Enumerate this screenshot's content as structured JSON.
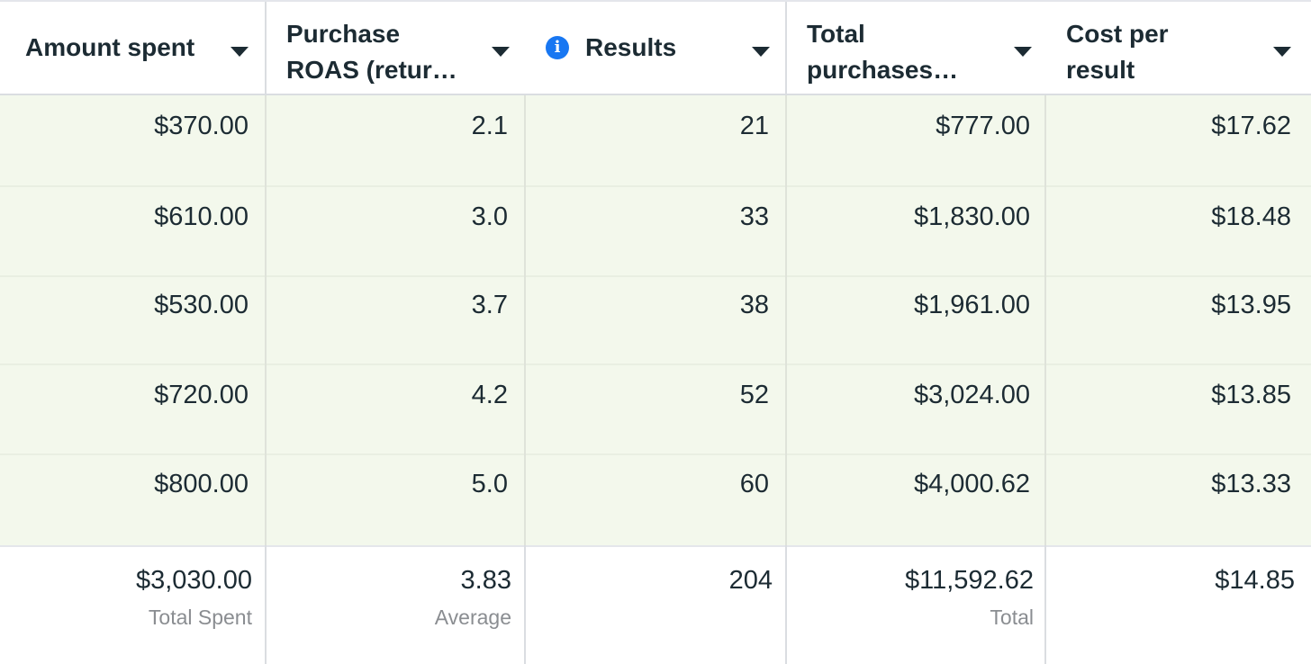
{
  "columns": [
    {
      "label": "Amount spent"
    },
    {
      "label": "Purchase\nROAS (retur…"
    },
    {
      "label": "Results"
    },
    {
      "label": "Total\npurchases…"
    },
    {
      "label": "Cost per\nresult"
    }
  ],
  "rows": [
    {
      "amount_spent": "$370.00",
      "roas": "2.1",
      "results": "21",
      "total_purchases": "$777.00",
      "cost_per_result": "$17.62"
    },
    {
      "amount_spent": "$610.00",
      "roas": "3.0",
      "results": "33",
      "total_purchases": "$1,830.00",
      "cost_per_result": "$18.48"
    },
    {
      "amount_spent": "$530.00",
      "roas": "3.7",
      "results": "38",
      "total_purchases": "$1,961.00",
      "cost_per_result": "$13.95"
    },
    {
      "amount_spent": "$720.00",
      "roas": "4.2",
      "results": "52",
      "total_purchases": "$3,024.00",
      "cost_per_result": "$13.85"
    },
    {
      "amount_spent": "$800.00",
      "roas": "5.0",
      "results": "60",
      "total_purchases": "$4,000.62",
      "cost_per_result": "$13.33"
    }
  ],
  "summary": {
    "amount_spent": {
      "value": "$3,030.00",
      "label": "Total Spent"
    },
    "roas": {
      "value": "3.83",
      "label": "Average"
    },
    "results": {
      "value": "204"
    },
    "total_purchases": {
      "value": "$11,592.62",
      "label": "Total"
    },
    "cost_per_result": {
      "value": "$14.85"
    }
  },
  "colors": {
    "row_highlight": "#f3f8ec",
    "info_icon": "#1877f2",
    "text": "#1c2b33",
    "muted_text": "#8a8d91"
  },
  "icons": {
    "sort_caret": "caret-down-icon",
    "info": "info-icon"
  }
}
